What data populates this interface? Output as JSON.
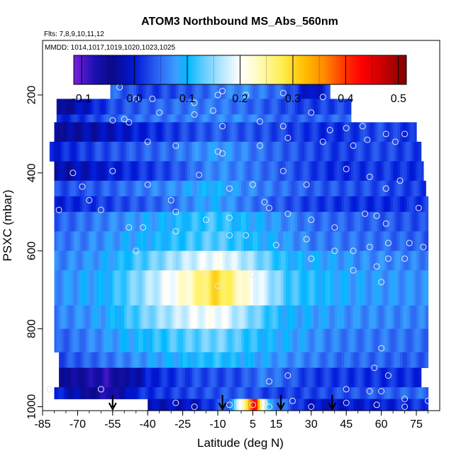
{
  "chart_data": {
    "type": "heatmap",
    "title": "ATOM3 Northbound MS_Abs_560nm",
    "flights_note": "Flts: 7,8,9,10,11,12",
    "mmdd_note": "MMDD: 1014,1017,1019,1020,1023,1025",
    "xlabel": "Latitude (deg N)",
    "ylabel": "PSXC (mbar)",
    "xlim": [
      -85,
      85
    ],
    "ylim": [
      1010,
      60
    ],
    "y_reversed": true,
    "x_ticks": [
      -85,
      -70,
      -55,
      -40,
      -25,
      -10,
      5,
      15,
      30,
      45,
      60,
      75
    ],
    "y_ticks": [
      1000,
      800,
      600,
      400,
      200
    ],
    "colorbar": {
      "range": [
        -0.115,
        0.515
      ],
      "ticks": [
        -0.1,
        0.0,
        0.1,
        0.2,
        0.3,
        0.4,
        0.5
      ],
      "stops": [
        {
          "v": -0.115,
          "c": "#7a1fe0"
        },
        {
          "v": -0.075,
          "c": "#1a0fb0"
        },
        {
          "v": -0.04,
          "c": "#0a0a8c"
        },
        {
          "v": 0.0,
          "c": "#0018d8"
        },
        {
          "v": 0.04,
          "c": "#2a5cf0"
        },
        {
          "v": 0.08,
          "c": "#3aa0ff"
        },
        {
          "v": 0.1,
          "c": "#00b8ff"
        },
        {
          "v": 0.13,
          "c": "#60ccff"
        },
        {
          "v": 0.17,
          "c": "#bfeaff"
        },
        {
          "v": 0.2,
          "c": "#ffffff"
        },
        {
          "v": 0.23,
          "c": "#fffbc8"
        },
        {
          "v": 0.28,
          "c": "#ffee50"
        },
        {
          "v": 0.32,
          "c": "#ffc000"
        },
        {
          "v": 0.36,
          "c": "#ff8800"
        },
        {
          "v": 0.4,
          "c": "#ff3000"
        },
        {
          "v": 0.43,
          "c": "#ff0000"
        },
        {
          "v": 0.47,
          "c": "#c80000"
        },
        {
          "v": 0.515,
          "c": "#800000"
        }
      ]
    },
    "layers": [
      {
        "p_top": 160,
        "p_bot": 210,
        "lat_min": -56,
        "lat_max": 38,
        "profile": [
          [
            -56,
            0.05
          ],
          [
            -40,
            0.02
          ],
          [
            -20,
            0.04
          ],
          [
            0,
            0.07
          ],
          [
            20,
            0.04
          ],
          [
            30,
            -0.02
          ],
          [
            38,
            0.02
          ]
        ]
      },
      {
        "p_top": 210,
        "p_bot": 250,
        "lat_min": -79,
        "lat_max": 47,
        "profile": [
          [
            -79,
            -0.05
          ],
          [
            -55,
            0.03
          ],
          [
            -30,
            0.05
          ],
          [
            -10,
            0.06
          ],
          [
            10,
            0.04
          ],
          [
            30,
            0.02
          ],
          [
            47,
            0.03
          ]
        ]
      },
      {
        "p_top": 250,
        "p_bot": 270,
        "lat_min": -79,
        "lat_max": 47,
        "profile": [
          [
            -79,
            0.0
          ],
          [
            -50,
            0.05
          ],
          [
            -20,
            0.06
          ],
          [
            0,
            0.07
          ],
          [
            20,
            0.04
          ],
          [
            47,
            0.05
          ]
        ]
      },
      {
        "p_top": 270,
        "p_bot": 320,
        "lat_min": -80,
        "lat_max": 75,
        "profile": [
          [
            -80,
            -0.04
          ],
          [
            -60,
            -0.02
          ],
          [
            -30,
            0.02
          ],
          [
            -10,
            0.04
          ],
          [
            10,
            0.03
          ],
          [
            40,
            0.01
          ],
          [
            60,
            0.03
          ],
          [
            75,
            0.01
          ]
        ]
      },
      {
        "p_top": 320,
        "p_bot": 370,
        "lat_min": -82,
        "lat_max": 77,
        "profile": [
          [
            -82,
            0.0
          ],
          [
            -60,
            0.03
          ],
          [
            -30,
            0.05
          ],
          [
            -10,
            0.08
          ],
          [
            10,
            0.05
          ],
          [
            40,
            0.02
          ],
          [
            60,
            0.03
          ],
          [
            77,
            0.02
          ]
        ]
      },
      {
        "p_top": 370,
        "p_bot": 420,
        "lat_min": -80,
        "lat_max": 78,
        "profile": [
          [
            -80,
            -0.03
          ],
          [
            -55,
            0.0
          ],
          [
            -30,
            0.03
          ],
          [
            -10,
            0.07
          ],
          [
            10,
            0.05
          ],
          [
            40,
            0.01
          ],
          [
            60,
            0.02
          ],
          [
            78,
            0.01
          ]
        ]
      },
      {
        "p_top": 420,
        "p_bot": 460,
        "lat_min": -80,
        "lat_max": 79,
        "profile": [
          [
            -80,
            0.03
          ],
          [
            -60,
            0.04
          ],
          [
            -30,
            0.07
          ],
          [
            -12,
            0.1
          ],
          [
            0,
            0.07
          ],
          [
            30,
            0.04
          ],
          [
            60,
            0.03
          ],
          [
            79,
            0.02
          ]
        ]
      },
      {
        "p_top": 460,
        "p_bot": 500,
        "lat_min": -80,
        "lat_max": 80,
        "profile": [
          [
            -80,
            0.0
          ],
          [
            -60,
            0.02
          ],
          [
            -30,
            0.05
          ],
          [
            -12,
            0.09
          ],
          [
            0,
            0.06
          ],
          [
            30,
            0.02
          ],
          [
            60,
            0.01
          ],
          [
            80,
            0.02
          ]
        ]
      },
      {
        "p_top": 500,
        "p_bot": 550,
        "lat_min": -80,
        "lat_max": 80,
        "profile": [
          [
            -80,
            0.04
          ],
          [
            -60,
            0.06
          ],
          [
            -35,
            0.09
          ],
          [
            -12,
            0.12
          ],
          [
            0,
            0.1
          ],
          [
            30,
            0.05
          ],
          [
            60,
            0.04
          ],
          [
            80,
            0.03
          ]
        ]
      },
      {
        "p_top": 550,
        "p_bot": 600,
        "lat_min": -80,
        "lat_max": 80,
        "profile": [
          [
            -80,
            0.05
          ],
          [
            -60,
            0.07
          ],
          [
            -35,
            0.1
          ],
          [
            -12,
            0.13
          ],
          [
            0,
            0.11
          ],
          [
            30,
            0.06
          ],
          [
            60,
            0.05
          ],
          [
            80,
            0.04
          ]
        ]
      },
      {
        "p_top": 600,
        "p_bot": 650,
        "lat_min": -80,
        "lat_max": 80,
        "profile": [
          [
            -80,
            0.06
          ],
          [
            -60,
            0.08
          ],
          [
            -40,
            0.13
          ],
          [
            -20,
            0.18
          ],
          [
            -10,
            0.2
          ],
          [
            0,
            0.17
          ],
          [
            20,
            0.1
          ],
          [
            50,
            0.07
          ],
          [
            80,
            0.06
          ]
        ]
      },
      {
        "p_top": 650,
        "p_bot": 740,
        "lat_min": -80,
        "lat_max": 80,
        "profile": [
          [
            -80,
            0.07
          ],
          [
            -60,
            0.09
          ],
          [
            -40,
            0.16
          ],
          [
            -25,
            0.22
          ],
          [
            -10,
            0.3
          ],
          [
            0,
            0.23
          ],
          [
            20,
            0.12
          ],
          [
            50,
            0.08
          ],
          [
            80,
            0.07
          ]
        ]
      },
      {
        "p_top": 740,
        "p_bot": 800,
        "lat_min": -80,
        "lat_max": 80,
        "profile": [
          [
            -80,
            0.06
          ],
          [
            -60,
            0.08
          ],
          [
            -40,
            0.14
          ],
          [
            -20,
            0.19
          ],
          [
            -10,
            0.2
          ],
          [
            0,
            0.16
          ],
          [
            20,
            0.09
          ],
          [
            50,
            0.07
          ],
          [
            80,
            0.06
          ]
        ]
      },
      {
        "p_top": 800,
        "p_bot": 860,
        "lat_min": -80,
        "lat_max": 80,
        "profile": [
          [
            -80,
            0.04
          ],
          [
            -60,
            0.07
          ],
          [
            -30,
            0.12
          ],
          [
            -10,
            0.14
          ],
          [
            10,
            0.1
          ],
          [
            40,
            0.06
          ],
          [
            80,
            0.05
          ]
        ]
      },
      {
        "p_top": 860,
        "p_bot": 900,
        "lat_min": -78,
        "lat_max": 80,
        "profile": [
          [
            -78,
            0.03
          ],
          [
            -60,
            0.05
          ],
          [
            -30,
            0.09
          ],
          [
            -10,
            0.11
          ],
          [
            10,
            0.08
          ],
          [
            40,
            0.05
          ],
          [
            80,
            0.04
          ]
        ]
      },
      {
        "p_top": 900,
        "p_bot": 950,
        "lat_min": -78,
        "lat_max": 77,
        "profile": [
          [
            -78,
            -0.04
          ],
          [
            -58,
            -0.08
          ],
          [
            -40,
            0.0
          ],
          [
            -20,
            0.03
          ],
          [
            0,
            0.03
          ],
          [
            10,
            0.06
          ],
          [
            30,
            0.02
          ],
          [
            77,
            0.01
          ]
        ]
      },
      {
        "p_top": 950,
        "p_bot": 980,
        "lat_min": -80,
        "lat_max": 80,
        "profile": [
          [
            -80,
            0.01
          ],
          [
            -56,
            -0.08
          ],
          [
            -45,
            0.01
          ],
          [
            -20,
            0.03
          ],
          [
            0,
            0.04
          ],
          [
            15,
            0.02
          ],
          [
            40,
            0.03
          ],
          [
            80,
            0.05
          ]
        ]
      },
      {
        "p_top": 980,
        "p_bot": 1010,
        "lat_min": -40,
        "lat_max": 80,
        "profile": [
          [
            -40,
            -0.02
          ],
          [
            -20,
            -0.01
          ],
          [
            -5,
            0.05
          ],
          [
            4,
            0.35
          ],
          [
            6,
            0.45
          ],
          [
            8,
            0.3
          ],
          [
            12,
            0.08
          ],
          [
            30,
            -0.01
          ],
          [
            60,
            0.0
          ],
          [
            80,
            0.02
          ]
        ]
      }
    ],
    "points": [
      [
        -52,
        180
      ],
      [
        -45,
        210
      ],
      [
        -38,
        210
      ],
      [
        -20,
        220
      ],
      [
        -10,
        200
      ],
      [
        -8,
        190
      ],
      [
        2,
        200
      ],
      [
        18,
        195
      ],
      [
        35,
        205
      ],
      [
        -70,
        205
      ],
      [
        -48,
        270
      ],
      [
        -50,
        262
      ],
      [
        -55,
        265
      ],
      [
        -35,
        245
      ],
      [
        -20,
        250
      ],
      [
        -12,
        240
      ],
      [
        -8,
        280
      ],
      [
        8,
        268
      ],
      [
        18,
        280
      ],
      [
        30,
        245
      ],
      [
        38,
        290
      ],
      [
        45,
        285
      ],
      [
        52,
        280
      ],
      [
        -40,
        320
      ],
      [
        -28,
        330
      ],
      [
        -8,
        350
      ],
      [
        -10,
        345
      ],
      [
        8,
        330
      ],
      [
        20,
        310
      ],
      [
        35,
        320
      ],
      [
        48,
        330
      ],
      [
        54,
        315
      ],
      [
        62,
        300
      ],
      [
        66,
        320
      ],
      [
        70,
        300
      ],
      [
        -72,
        400
      ],
      [
        -68,
        435
      ],
      [
        -65,
        470
      ],
      [
        -55,
        395
      ],
      [
        -40,
        430
      ],
      [
        -30,
        470
      ],
      [
        -18,
        405
      ],
      [
        -5,
        440
      ],
      [
        5,
        430
      ],
      [
        18,
        395
      ],
      [
        28,
        430
      ],
      [
        45,
        390
      ],
      [
        55,
        410
      ],
      [
        62,
        440
      ],
      [
        68,
        420
      ],
      [
        -78,
        495
      ],
      [
        -60,
        495
      ],
      [
        -28,
        500
      ],
      [
        -15,
        520
      ],
      [
        -5,
        515
      ],
      [
        10,
        475
      ],
      [
        12,
        490
      ],
      [
        20,
        505
      ],
      [
        30,
        520
      ],
      [
        40,
        540
      ],
      [
        53,
        505
      ],
      [
        58,
        510
      ],
      [
        62,
        530
      ],
      [
        76,
        490
      ],
      [
        -48,
        540
      ],
      [
        -42,
        540
      ],
      [
        -28,
        550
      ],
      [
        -5,
        560
      ],
      [
        2,
        560
      ],
      [
        15,
        585
      ],
      [
        28,
        570
      ],
      [
        40,
        600
      ],
      [
        48,
        600
      ],
      [
        55,
        590
      ],
      [
        63,
        580
      ],
      [
        72,
        580
      ],
      [
        78,
        590
      ],
      [
        -45,
        600
      ],
      [
        -15,
        650
      ],
      [
        5,
        660
      ],
      [
        30,
        620
      ],
      [
        48,
        650
      ],
      [
        58,
        640
      ],
      [
        63,
        620
      ],
      [
        70,
        620
      ],
      [
        -10,
        690
      ],
      [
        60,
        680
      ],
      [
        60,
        850
      ],
      [
        57,
        900
      ],
      [
        12,
        935
      ],
      [
        20,
        920
      ],
      [
        63,
        920
      ],
      [
        -82,
        955
      ],
      [
        -60,
        955
      ],
      [
        45,
        955
      ],
      [
        55,
        960
      ],
      [
        60,
        960
      ],
      [
        70,
        980
      ],
      [
        -28,
        990
      ],
      [
        -20,
        1000
      ],
      [
        -5,
        995
      ],
      [
        5,
        995
      ],
      [
        10,
        990
      ],
      [
        12,
        1000
      ],
      [
        22,
        985
      ],
      [
        30,
        1000
      ],
      [
        45,
        990
      ],
      [
        58,
        995
      ],
      [
        70,
        1000
      ],
      [
        80,
        985
      ]
    ],
    "arrows_lat": [
      -55,
      -8,
      17,
      39
    ]
  }
}
